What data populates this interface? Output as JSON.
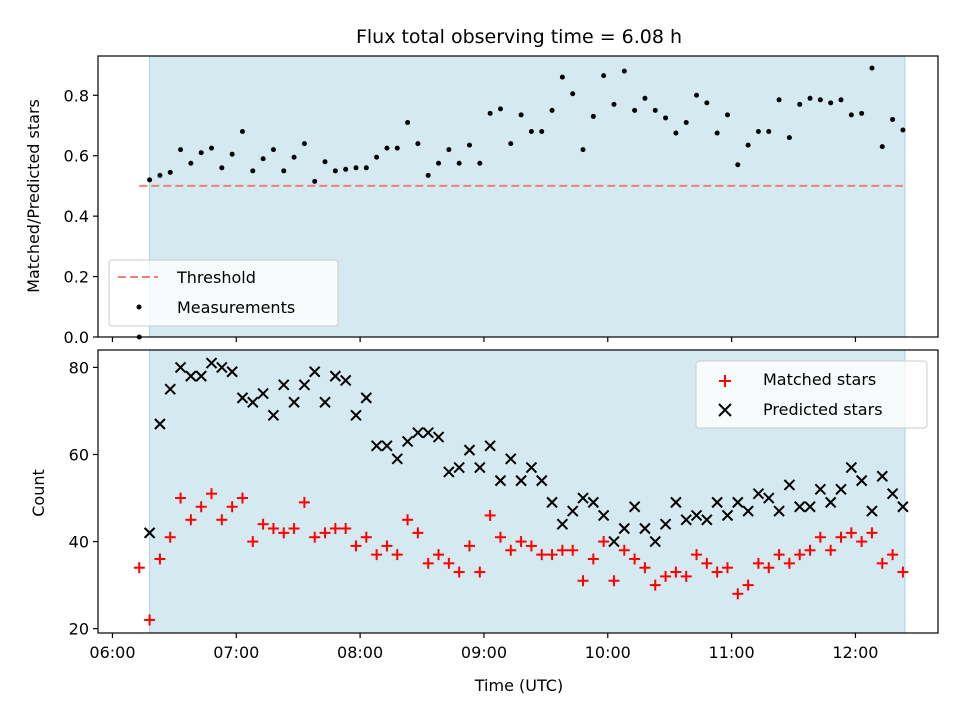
{
  "chart_data": [
    {
      "type": "scatter",
      "title": "Flux total observing time = 6.08 h",
      "xlabel": "",
      "ylabel": "Matched/Predicted stars",
      "ylim": [
        0,
        0.93
      ],
      "xlim": [
        "05:53",
        "12:40"
      ],
      "yticks": [
        "0.0",
        "0.2",
        "0.4",
        "0.6",
        "0.8"
      ],
      "shaded_interval": [
        "06:18",
        "12:24"
      ],
      "threshold": {
        "name": "Threshold",
        "value": 0.5,
        "x_range": [
          "06:13",
          "12:23"
        ],
        "color": "#f08080"
      },
      "legend": {
        "placement": "lower-left",
        "entries": [
          "Threshold",
          "Measurements"
        ]
      },
      "series": [
        {
          "name": "Measurements",
          "color": "#000000",
          "points": [
            [
              "06:13",
              0.0
            ],
            [
              "06:18",
              0.52
            ],
            [
              "06:23",
              0.535
            ],
            [
              "06:28",
              0.545
            ],
            [
              "06:33",
              0.62
            ],
            [
              "06:38",
              0.575
            ],
            [
              "06:43",
              0.61
            ],
            [
              "06:48",
              0.625
            ],
            [
              "06:53",
              0.56
            ],
            [
              "06:58",
              0.605
            ],
            [
              "07:03",
              0.68
            ],
            [
              "07:08",
              0.55
            ],
            [
              "07:13",
              0.59
            ],
            [
              "07:18",
              0.62
            ],
            [
              "07:23",
              0.55
            ],
            [
              "07:28",
              0.595
            ],
            [
              "07:33",
              0.64
            ],
            [
              "07:38",
              0.515
            ],
            [
              "07:43",
              0.58
            ],
            [
              "07:48",
              0.55
            ],
            [
              "07:53",
              0.555
            ],
            [
              "07:58",
              0.56
            ],
            [
              "08:03",
              0.56
            ],
            [
              "08:08",
              0.595
            ],
            [
              "08:13",
              0.625
            ],
            [
              "08:18",
              0.625
            ],
            [
              "08:23",
              0.71
            ],
            [
              "08:28",
              0.64
            ],
            [
              "08:33",
              0.535
            ],
            [
              "08:38",
              0.575
            ],
            [
              "08:43",
              0.62
            ],
            [
              "08:48",
              0.575
            ],
            [
              "08:53",
              0.635
            ],
            [
              "08:58",
              0.575
            ],
            [
              "09:03",
              0.74
            ],
            [
              "09:08",
              0.755
            ],
            [
              "09:13",
              0.64
            ],
            [
              "09:18",
              0.735
            ],
            [
              "09:23",
              0.68
            ],
            [
              "09:28",
              0.68
            ],
            [
              "09:33",
              0.75
            ],
            [
              "09:38",
              0.86
            ],
            [
              "09:43",
              0.805
            ],
            [
              "09:48",
              0.62
            ],
            [
              "09:53",
              0.73
            ],
            [
              "09:58",
              0.865
            ],
            [
              "10:03",
              0.77
            ],
            [
              "10:08",
              0.88
            ],
            [
              "10:13",
              0.75
            ],
            [
              "10:18",
              0.79
            ],
            [
              "10:23",
              0.75
            ],
            [
              "10:28",
              0.725
            ],
            [
              "10:33",
              0.675
            ],
            [
              "10:38",
              0.71
            ],
            [
              "10:43",
              0.8
            ],
            [
              "10:48",
              0.775
            ],
            [
              "10:53",
              0.675
            ],
            [
              "10:58",
              0.735
            ],
            [
              "11:03",
              0.57
            ],
            [
              "11:08",
              0.635
            ],
            [
              "11:13",
              0.68
            ],
            [
              "11:18",
              0.68
            ],
            [
              "11:23",
              0.785
            ],
            [
              "11:28",
              0.66
            ],
            [
              "11:33",
              0.77
            ],
            [
              "11:38",
              0.79
            ],
            [
              "11:43",
              0.785
            ],
            [
              "11:48",
              0.775
            ],
            [
              "11:53",
              0.785
            ],
            [
              "11:58",
              0.735
            ],
            [
              "12:03",
              0.74
            ],
            [
              "12:08",
              0.89
            ],
            [
              "12:13",
              0.63
            ],
            [
              "12:18",
              0.72
            ],
            [
              "12:23",
              0.685
            ]
          ]
        }
      ]
    },
    {
      "type": "scatter",
      "title": "",
      "xlabel": "Time (UTC)",
      "ylabel": "Count",
      "ylim": [
        19,
        84
      ],
      "xlim": [
        "05:53",
        "12:40"
      ],
      "yticks": [
        "20",
        "40",
        "60",
        "80"
      ],
      "xticks": [
        "06:00",
        "07:00",
        "08:00",
        "09:00",
        "10:00",
        "11:00",
        "12:00"
      ],
      "shaded_interval": [
        "06:18",
        "12:24"
      ],
      "legend": {
        "placement": "top-right",
        "entries": [
          "Matched stars",
          "Predicted stars"
        ]
      },
      "series": [
        {
          "name": "Matched stars",
          "marker": "plus",
          "color": "#ff0000",
          "points": [
            [
              "06:13",
              34
            ],
            [
              "06:18",
              22
            ],
            [
              "06:23",
              36
            ],
            [
              "06:28",
              41
            ],
            [
              "06:33",
              50
            ],
            [
              "06:38",
              45
            ],
            [
              "06:43",
              48
            ],
            [
              "06:48",
              51
            ],
            [
              "06:53",
              45
            ],
            [
              "06:58",
              48
            ],
            [
              "07:03",
              50
            ],
            [
              "07:08",
              40
            ],
            [
              "07:13",
              44
            ],
            [
              "07:18",
              43
            ],
            [
              "07:23",
              42
            ],
            [
              "07:28",
              43
            ],
            [
              "07:33",
              49
            ],
            [
              "07:38",
              41
            ],
            [
              "07:43",
              42
            ],
            [
              "07:48",
              43
            ],
            [
              "07:53",
              43
            ],
            [
              "07:58",
              39
            ],
            [
              "08:03",
              41
            ],
            [
              "08:08",
              37
            ],
            [
              "08:13",
              39
            ],
            [
              "08:18",
              37
            ],
            [
              "08:23",
              45
            ],
            [
              "08:28",
              42
            ],
            [
              "08:33",
              35
            ],
            [
              "08:38",
              37
            ],
            [
              "08:43",
              35
            ],
            [
              "08:48",
              33
            ],
            [
              "08:53",
              39
            ],
            [
              "08:58",
              33
            ],
            [
              "09:03",
              46
            ],
            [
              "09:08",
              41
            ],
            [
              "09:13",
              38
            ],
            [
              "09:18",
              40
            ],
            [
              "09:23",
              39
            ],
            [
              "09:28",
              37
            ],
            [
              "09:33",
              37
            ],
            [
              "09:38",
              38
            ],
            [
              "09:43",
              38
            ],
            [
              "09:48",
              31
            ],
            [
              "09:53",
              36
            ],
            [
              "09:58",
              40
            ],
            [
              "10:03",
              31
            ],
            [
              "10:08",
              38
            ],
            [
              "10:13",
              36
            ],
            [
              "10:18",
              34
            ],
            [
              "10:23",
              30
            ],
            [
              "10:28",
              32
            ],
            [
              "10:33",
              33
            ],
            [
              "10:38",
              32
            ],
            [
              "10:43",
              37
            ],
            [
              "10:48",
              35
            ],
            [
              "10:53",
              33
            ],
            [
              "10:58",
              34
            ],
            [
              "11:03",
              28
            ],
            [
              "11:08",
              30
            ],
            [
              "11:13",
              35
            ],
            [
              "11:18",
              34
            ],
            [
              "11:23",
              37
            ],
            [
              "11:28",
              35
            ],
            [
              "11:33",
              37
            ],
            [
              "11:38",
              38
            ],
            [
              "11:43",
              41
            ],
            [
              "11:48",
              38
            ],
            [
              "11:53",
              41
            ],
            [
              "11:58",
              42
            ],
            [
              "12:03",
              40
            ],
            [
              "12:08",
              42
            ],
            [
              "12:13",
              35
            ],
            [
              "12:18",
              37
            ],
            [
              "12:23",
              33
            ]
          ]
        },
        {
          "name": "Predicted stars",
          "marker": "x",
          "color": "#000000",
          "points": [
            [
              "06:18",
              42
            ],
            [
              "06:23",
              67
            ],
            [
              "06:28",
              75
            ],
            [
              "06:33",
              80
            ],
            [
              "06:38",
              78
            ],
            [
              "06:43",
              78
            ],
            [
              "06:48",
              81
            ],
            [
              "06:53",
              80
            ],
            [
              "06:58",
              79
            ],
            [
              "07:03",
              73
            ],
            [
              "07:08",
              72
            ],
            [
              "07:13",
              74
            ],
            [
              "07:18",
              69
            ],
            [
              "07:23",
              76
            ],
            [
              "07:28",
              72
            ],
            [
              "07:33",
              76
            ],
            [
              "07:38",
              79
            ],
            [
              "07:43",
              72
            ],
            [
              "07:48",
              78
            ],
            [
              "07:53",
              77
            ],
            [
              "07:58",
              69
            ],
            [
              "08:03",
              73
            ],
            [
              "08:08",
              62
            ],
            [
              "08:13",
              62
            ],
            [
              "08:18",
              59
            ],
            [
              "08:23",
              63
            ],
            [
              "08:28",
              65
            ],
            [
              "08:33",
              65
            ],
            [
              "08:38",
              64
            ],
            [
              "08:43",
              56
            ],
            [
              "08:48",
              57
            ],
            [
              "08:53",
              61
            ],
            [
              "08:58",
              57
            ],
            [
              "09:03",
              62
            ],
            [
              "09:08",
              54
            ],
            [
              "09:13",
              59
            ],
            [
              "09:18",
              54
            ],
            [
              "09:23",
              57
            ],
            [
              "09:28",
              54
            ],
            [
              "09:33",
              49
            ],
            [
              "09:38",
              44
            ],
            [
              "09:43",
              47
            ],
            [
              "09:48",
              50
            ],
            [
              "09:53",
              49
            ],
            [
              "09:58",
              46
            ],
            [
              "10:03",
              40
            ],
            [
              "10:08",
              43
            ],
            [
              "10:13",
              48
            ],
            [
              "10:18",
              43
            ],
            [
              "10:23",
              40
            ],
            [
              "10:28",
              44
            ],
            [
              "10:33",
              49
            ],
            [
              "10:38",
              45
            ],
            [
              "10:43",
              46
            ],
            [
              "10:48",
              45
            ],
            [
              "10:53",
              49
            ],
            [
              "10:58",
              46
            ],
            [
              "11:03",
              49
            ],
            [
              "11:08",
              47
            ],
            [
              "11:13",
              51
            ],
            [
              "11:18",
              50
            ],
            [
              "11:23",
              47
            ],
            [
              "11:28",
              53
            ],
            [
              "11:33",
              48
            ],
            [
              "11:38",
              48
            ],
            [
              "11:43",
              52
            ],
            [
              "11:48",
              49
            ],
            [
              "11:53",
              52
            ],
            [
              "11:58",
              57
            ],
            [
              "12:03",
              54
            ],
            [
              "12:08",
              47
            ],
            [
              "12:13",
              55
            ],
            [
              "12:18",
              51
            ],
            [
              "12:23",
              48
            ]
          ]
        }
      ]
    }
  ],
  "colors": {
    "shaded": "#d4eaf0",
    "threshold": "#f08080",
    "matched": "#ff0000",
    "predicted": "#000000"
  }
}
